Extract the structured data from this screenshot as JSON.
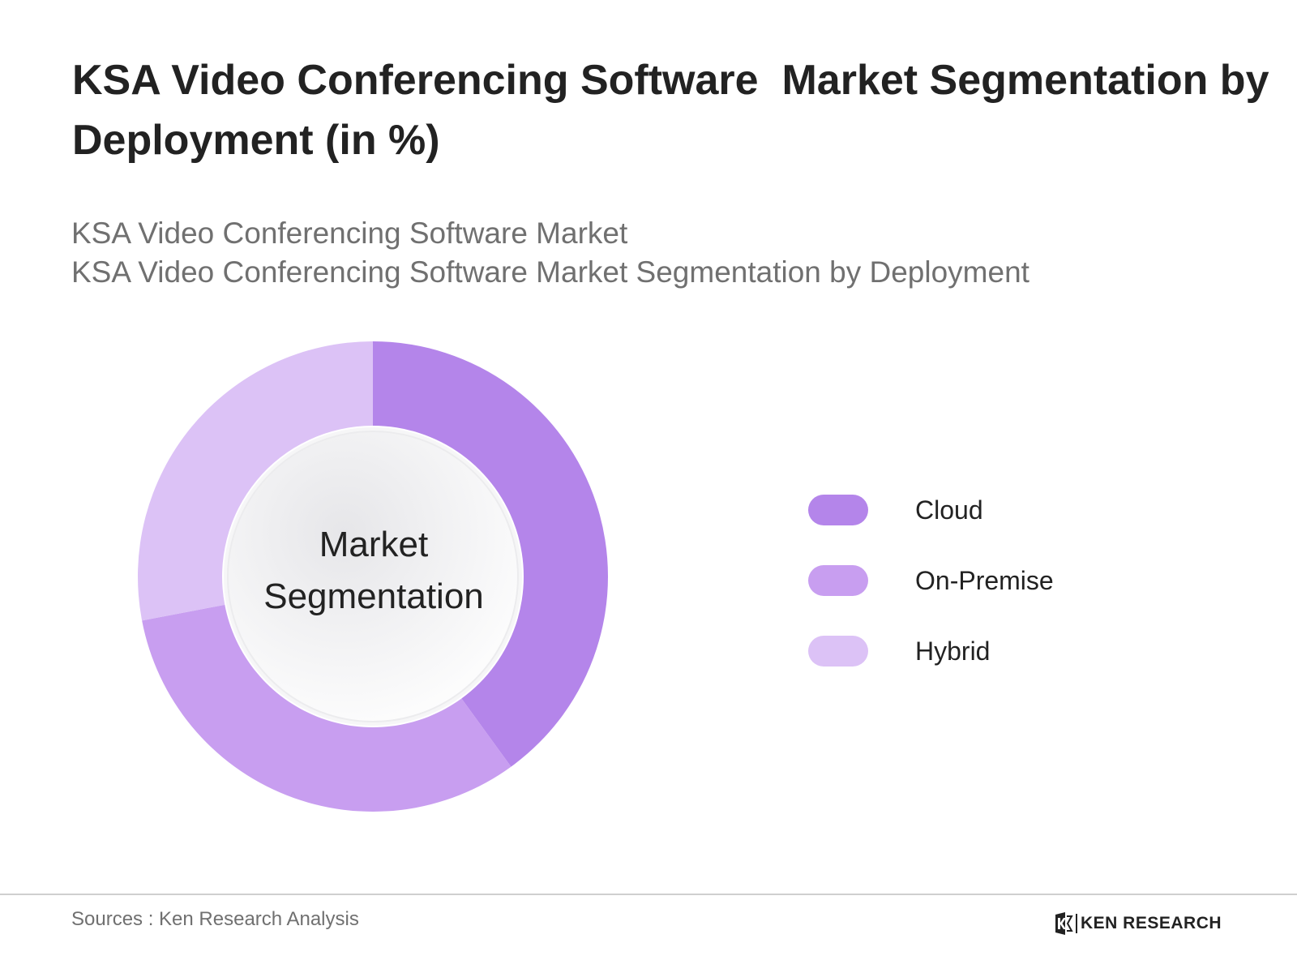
{
  "header": {
    "title": "KSA Video Conferencing Software  Market Segmentation by Deployment (in %)",
    "subtitle_lines": [
      "KSA Video Conferencing Software Market",
      "KSA Video Conferencing Software Market Segmentation by Deployment"
    ]
  },
  "chart_data": {
    "type": "pie",
    "variant": "donut",
    "center_label_lines": [
      "Market",
      "Segmentation"
    ],
    "categories": [
      "Cloud",
      "On-Premise",
      "Hybrid"
    ],
    "values": [
      40,
      32,
      28
    ],
    "colors": [
      "#b485ea",
      "#c89ef0",
      "#dcc2f6"
    ],
    "legend_position": "right",
    "data_labels": false
  },
  "footer": {
    "source": "Sources : Ken Research Analysis",
    "brand": "KEN RESEARCH"
  }
}
